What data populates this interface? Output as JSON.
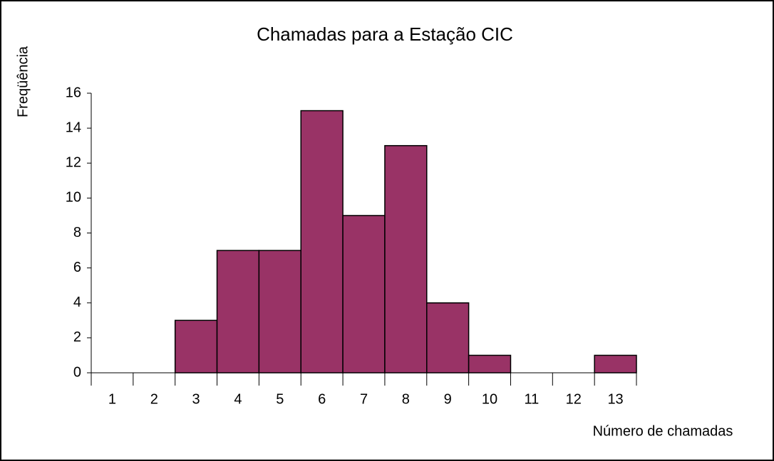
{
  "chart_data": {
    "type": "bar",
    "title": "Chamadas para a Estação CIC",
    "x_label": "Número de chamadas",
    "y_label": "Freqüência",
    "categories": [
      "1",
      "2",
      "3",
      "4",
      "5",
      "6",
      "7",
      "8",
      "9",
      "10",
      "11",
      "12",
      "13"
    ],
    "values": [
      0,
      0,
      3,
      7,
      7,
      15,
      9,
      13,
      4,
      1,
      0,
      0,
      1
    ],
    "color": "#993366",
    "ylim": [
      0,
      16
    ],
    "yticks": [
      0,
      2,
      4,
      6,
      8,
      10,
      12,
      14,
      16
    ],
    "grid": false
  }
}
